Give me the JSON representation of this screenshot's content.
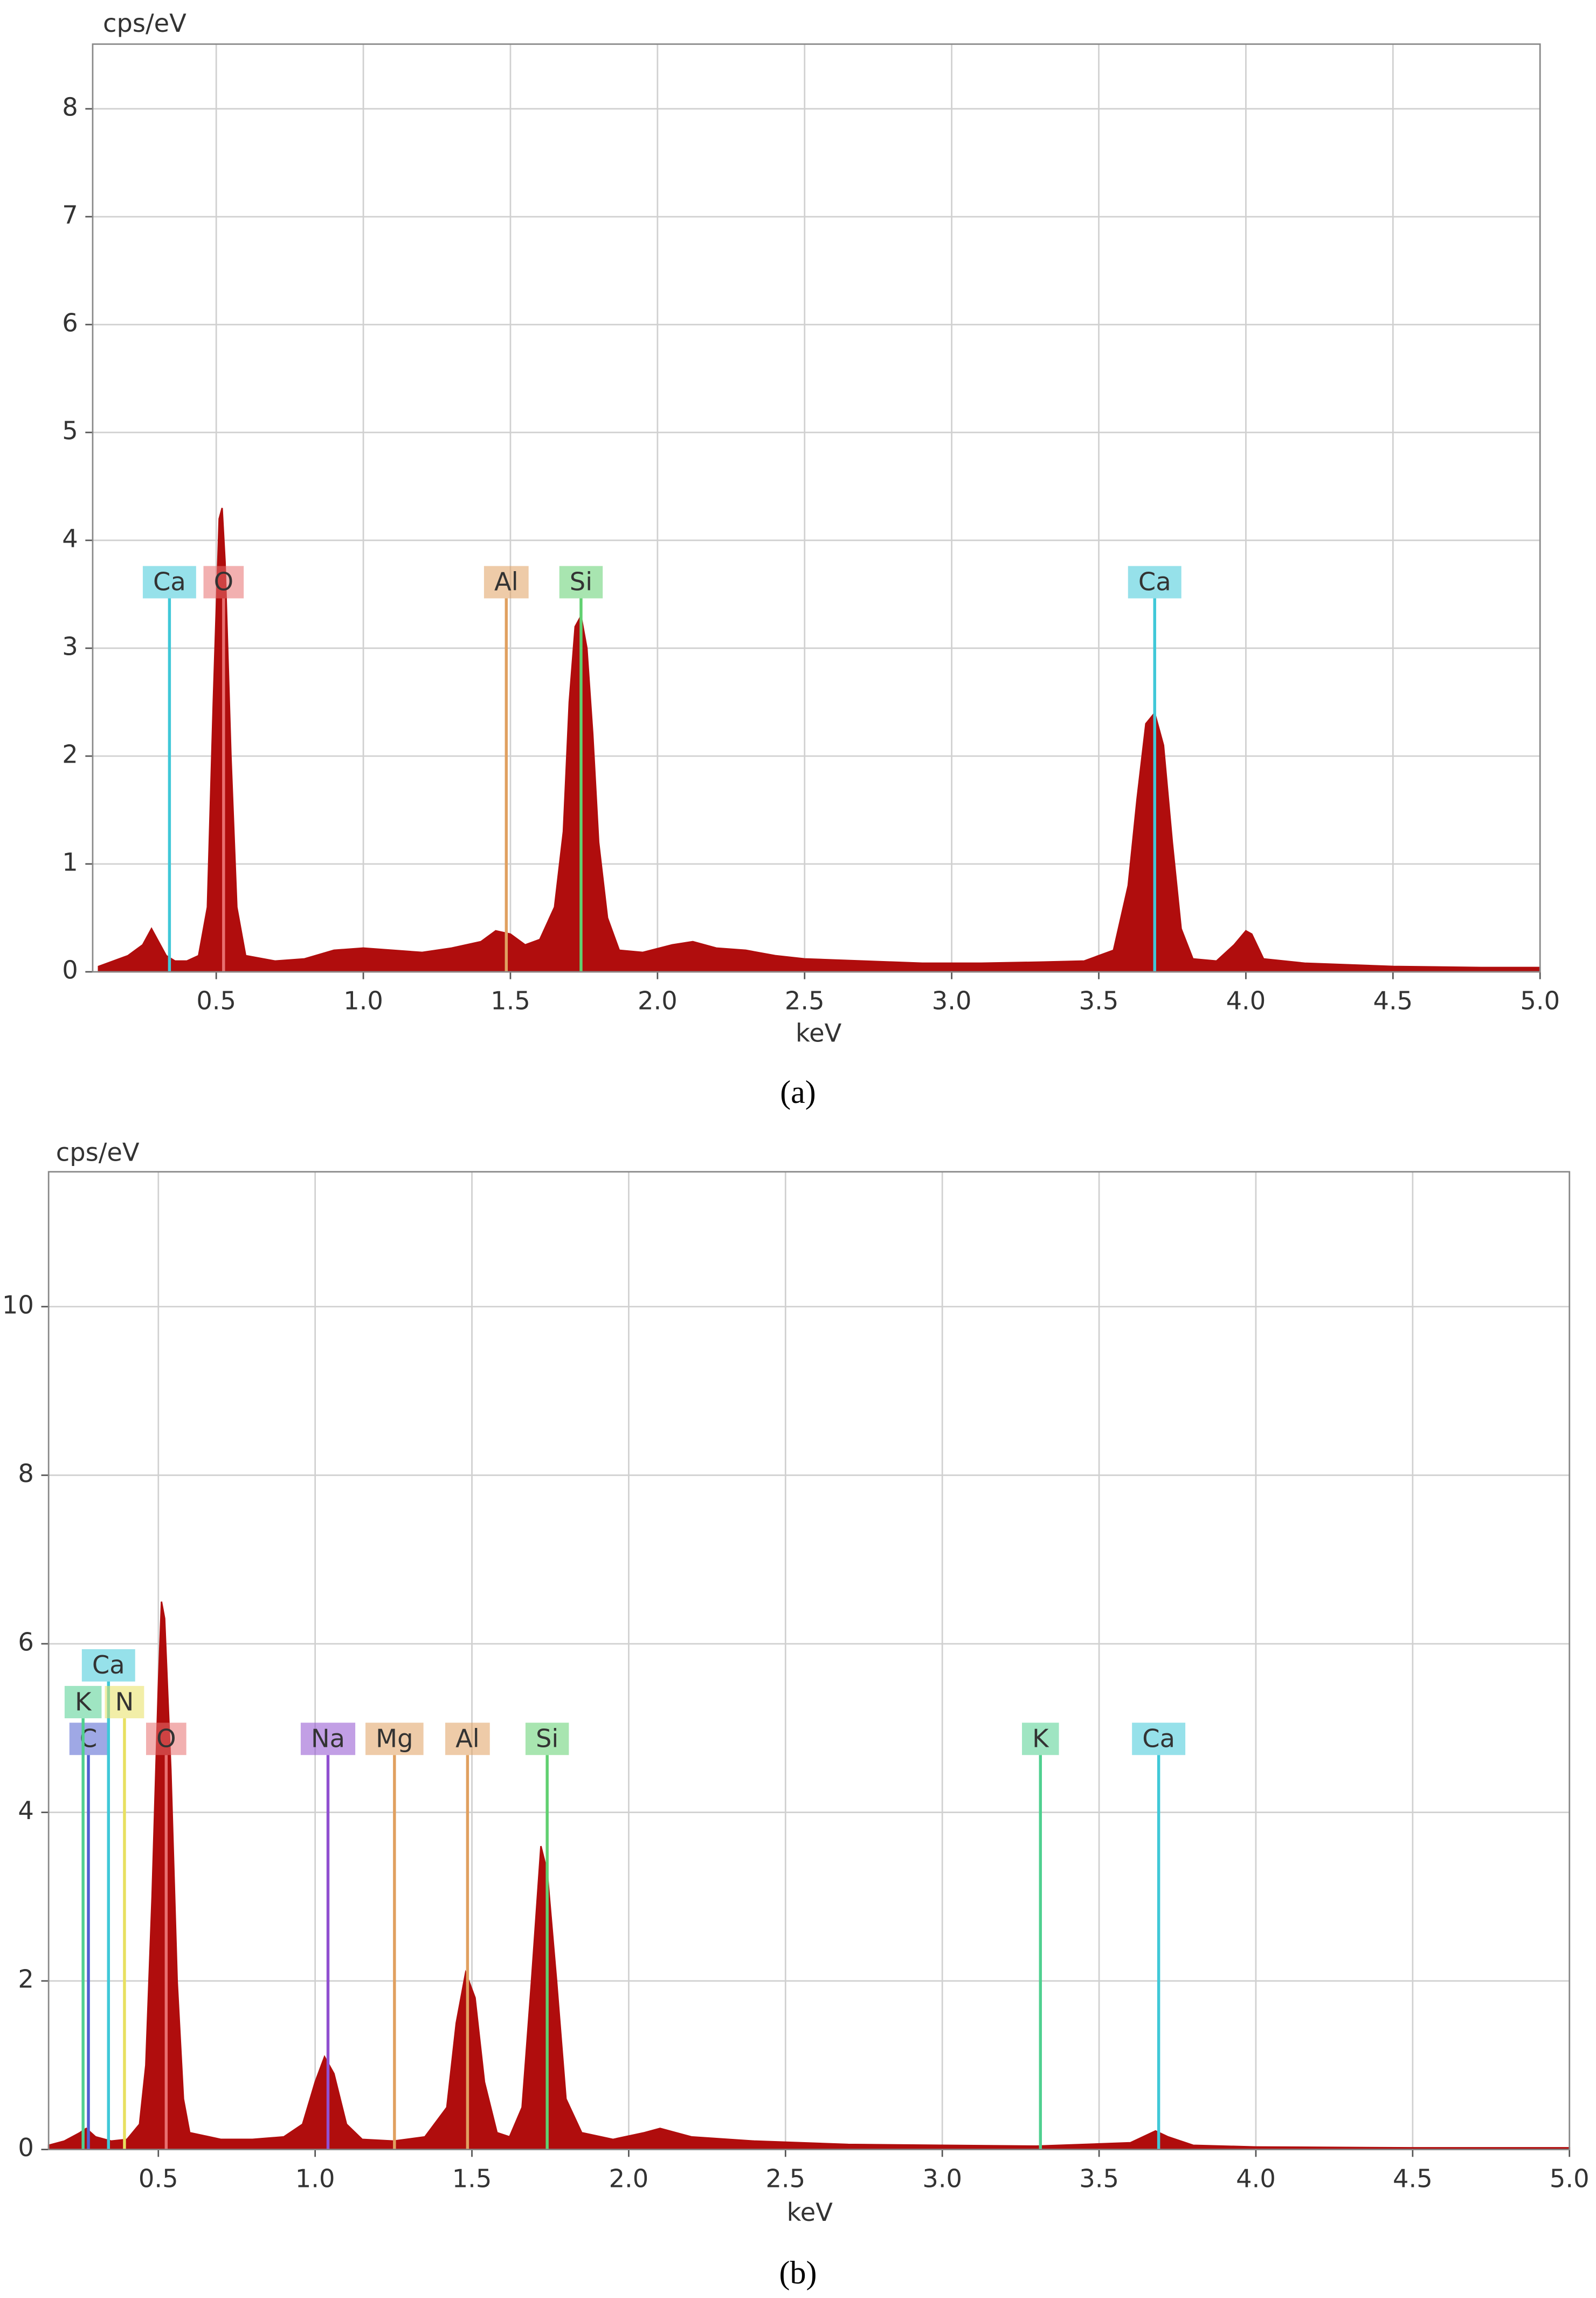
{
  "chart_data": [
    {
      "type": "area",
      "y_label": "cps/eV",
      "x_label": "keV",
      "caption": "(a)",
      "color": "#b00d0d",
      "xlim": [
        0.08,
        5.0
      ],
      "ylim": [
        0,
        8.6
      ],
      "xticks": [
        0.5,
        {
          "value": 1,
          "label": "1.0"
        },
        1.5,
        {
          "value": 2,
          "label": "2.0"
        },
        2.5,
        {
          "value": 3,
          "label": "3.0"
        },
        3.5,
        {
          "value": 4,
          "label": "4.0"
        },
        4.5,
        {
          "value": 5,
          "label": "5.0"
        }
      ],
      "yticks": [
        0,
        1,
        2,
        3,
        4,
        5,
        6,
        7,
        8
      ],
      "x": [
        0.1,
        0.15,
        0.2,
        0.25,
        0.28,
        0.3,
        0.33,
        0.36,
        0.4,
        0.44,
        0.47,
        0.49,
        0.51,
        0.52,
        0.53,
        0.55,
        0.57,
        0.6,
        0.7,
        0.8,
        0.9,
        1.0,
        1.1,
        1.2,
        1.3,
        1.4,
        1.45,
        1.5,
        1.55,
        1.6,
        1.65,
        1.68,
        1.7,
        1.72,
        1.74,
        1.76,
        1.78,
        1.8,
        1.83,
        1.87,
        1.95,
        2.05,
        2.12,
        2.2,
        2.3,
        2.4,
        2.5,
        2.7,
        2.9,
        3.1,
        3.3,
        3.45,
        3.55,
        3.6,
        3.63,
        3.66,
        3.69,
        3.72,
        3.75,
        3.78,
        3.82,
        3.9,
        3.96,
        4.0,
        4.02,
        4.06,
        4.2,
        4.5,
        4.8,
        5.0
      ],
      "values": [
        0.05,
        0.1,
        0.15,
        0.25,
        0.4,
        0.3,
        0.15,
        0.1,
        0.1,
        0.15,
        0.6,
        2.5,
        4.2,
        4.3,
        3.8,
        2.0,
        0.6,
        0.15,
        0.1,
        0.12,
        0.2,
        0.22,
        0.2,
        0.18,
        0.22,
        0.28,
        0.38,
        0.35,
        0.25,
        0.3,
        0.6,
        1.3,
        2.5,
        3.2,
        3.3,
        3.0,
        2.2,
        1.2,
        0.5,
        0.2,
        0.18,
        0.25,
        0.28,
        0.22,
        0.2,
        0.15,
        0.12,
        0.1,
        0.08,
        0.08,
        0.09,
        0.1,
        0.2,
        0.8,
        1.6,
        2.3,
        2.4,
        2.1,
        1.2,
        0.4,
        0.12,
        0.1,
        0.25,
        0.38,
        0.35,
        0.12,
        0.08,
        0.05,
        0.04,
        0.04
      ],
      "annotations": [
        {
          "label": "Ca",
          "x": 0.341,
          "color": "#40c8d8"
        },
        {
          "label": "O",
          "x": 0.525,
          "color": "#e87070"
        },
        {
          "label": "Al",
          "x": 1.486,
          "color": "#e0a060"
        },
        {
          "label": "Si",
          "x": 1.74,
          "color": "#60d070"
        },
        {
          "label": "Ca",
          "x": 3.69,
          "color": "#40c8d8"
        }
      ]
    },
    {
      "type": "area",
      "y_label": "cps/eV",
      "x_label": "keV",
      "caption": "(b)",
      "color": "#b00d0d",
      "xlim": [
        0.15,
        5.0
      ],
      "ylim": [
        0,
        11.6
      ],
      "xticks": [
        0.5,
        {
          "value": 1,
          "label": "1.0"
        },
        1.5,
        {
          "value": 2,
          "label": "2.0"
        },
        2.5,
        {
          "value": 3,
          "label": "3.0"
        },
        3.5,
        {
          "value": 4,
          "label": "4.0"
        },
        4.5,
        {
          "value": 5,
          "label": "5.0"
        }
      ],
      "yticks": [
        0,
        2,
        4,
        6,
        8,
        10
      ],
      "x": [
        0.15,
        0.2,
        0.25,
        0.27,
        0.3,
        0.35,
        0.4,
        0.44,
        0.46,
        0.48,
        0.5,
        0.51,
        0.52,
        0.54,
        0.56,
        0.58,
        0.6,
        0.7,
        0.8,
        0.9,
        0.96,
        1.0,
        1.03,
        1.06,
        1.1,
        1.15,
        1.25,
        1.35,
        1.42,
        1.45,
        1.48,
        1.51,
        1.54,
        1.58,
        1.62,
        1.66,
        1.69,
        1.72,
        1.74,
        1.77,
        1.8,
        1.85,
        1.95,
        2.05,
        2.1,
        2.2,
        2.4,
        2.7,
        3.0,
        3.3,
        3.6,
        3.68,
        3.72,
        3.8,
        4.0,
        4.5,
        5.0
      ],
      "values": [
        0.05,
        0.1,
        0.2,
        0.25,
        0.15,
        0.1,
        0.12,
        0.3,
        1.0,
        3.0,
        5.5,
        6.5,
        6.3,
        4.5,
        2.0,
        0.6,
        0.2,
        0.12,
        0.12,
        0.15,
        0.3,
        0.8,
        1.1,
        0.9,
        0.3,
        0.12,
        0.1,
        0.15,
        0.5,
        1.5,
        2.1,
        1.8,
        0.8,
        0.2,
        0.15,
        0.5,
        2.0,
        3.6,
        3.3,
        2.0,
        0.6,
        0.2,
        0.12,
        0.2,
        0.25,
        0.15,
        0.1,
        0.06,
        0.05,
        0.04,
        0.08,
        0.22,
        0.15,
        0.05,
        0.03,
        0.02,
        0.02
      ],
      "annotations": [
        {
          "label": "C",
          "x": 0.277,
          "color": "#5060d0"
        },
        {
          "label": "K",
          "x": 0.26,
          "color": "#50d090"
        },
        {
          "label": "Ca",
          "x": 0.341,
          "color": "#40c8d8"
        },
        {
          "label": "N",
          "x": 0.392,
          "color": "#e8e060"
        },
        {
          "label": "O",
          "x": 0.525,
          "color": "#e87070"
        },
        {
          "label": "Na",
          "x": 1.041,
          "color": "#9050d0"
        },
        {
          "label": "Mg",
          "x": 1.253,
          "color": "#e0a060"
        },
        {
          "label": "Al",
          "x": 1.486,
          "color": "#e0a060"
        },
        {
          "label": "Si",
          "x": 1.74,
          "color": "#60d070"
        },
        {
          "label": "K",
          "x": 3.313,
          "color": "#50d090"
        },
        {
          "label": "Ca",
          "x": 3.69,
          "color": "#40c8d8"
        }
      ]
    }
  ]
}
